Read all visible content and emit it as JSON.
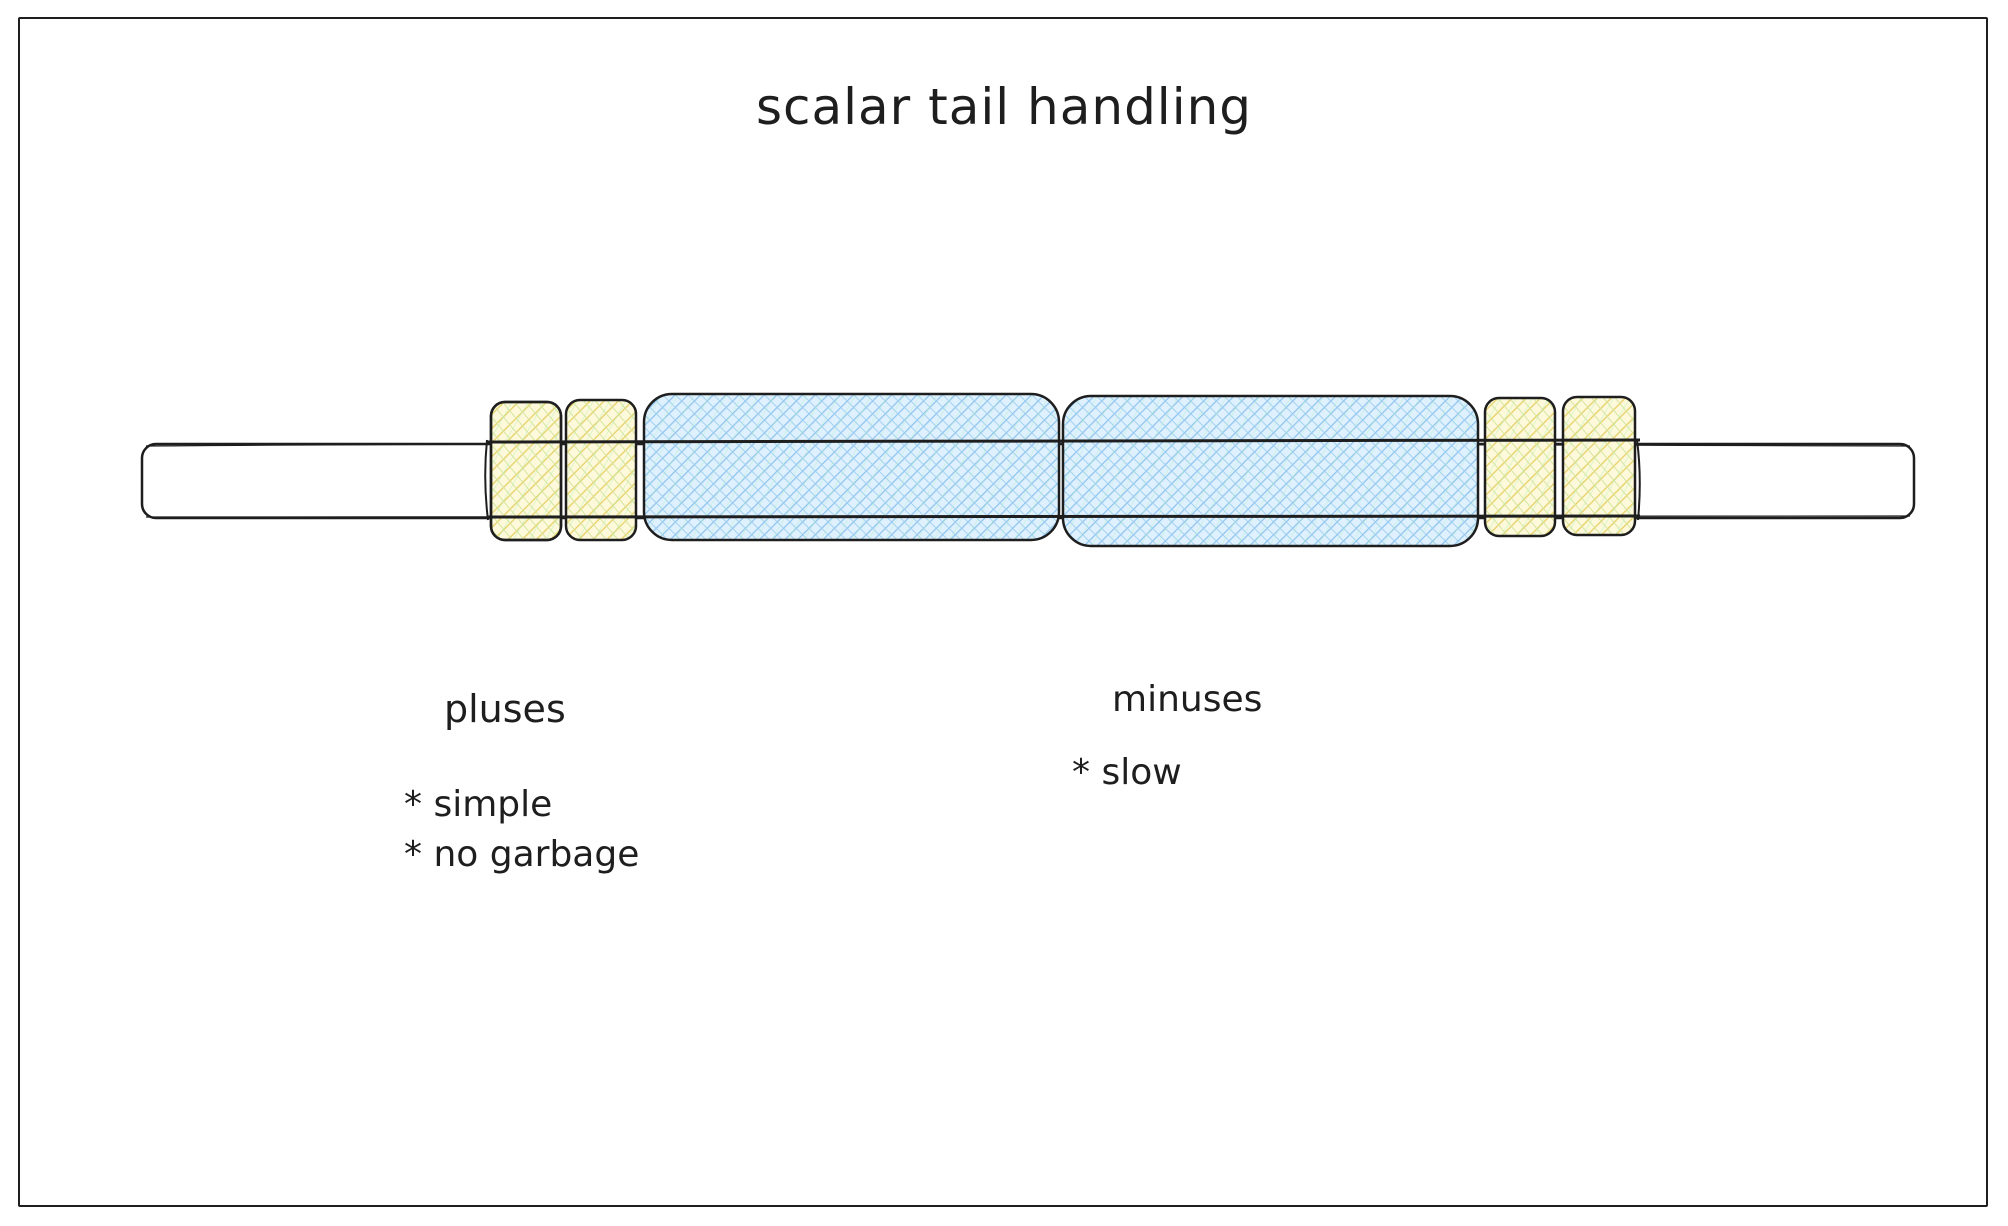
{
  "title": "scalar tail handling",
  "pluses": {
    "heading": "pluses",
    "items": [
      "* simple",
      "* no garbage"
    ]
  },
  "minuses": {
    "heading": "minuses",
    "items": [
      "* slow"
    ]
  },
  "colors": {
    "stroke": "#1e1e1e",
    "scalar_fill": "#ffec99",
    "scalar_hatch": "#d9c76a",
    "vector_fill": "#a5d8ff",
    "vector_hatch": "#6fa8dc",
    "green_hatch": "#b2f2bb",
    "background": "#ffffff"
  },
  "diagram": {
    "blocks": [
      {
        "name": "scalar-block-1",
        "kind": "scalar"
      },
      {
        "name": "scalar-block-2",
        "kind": "scalar"
      },
      {
        "name": "vector-block-1",
        "kind": "vector"
      },
      {
        "name": "vector-block-2",
        "kind": "vector"
      },
      {
        "name": "scalar-block-3",
        "kind": "scalar"
      },
      {
        "name": "scalar-block-4",
        "kind": "scalar"
      }
    ]
  }
}
